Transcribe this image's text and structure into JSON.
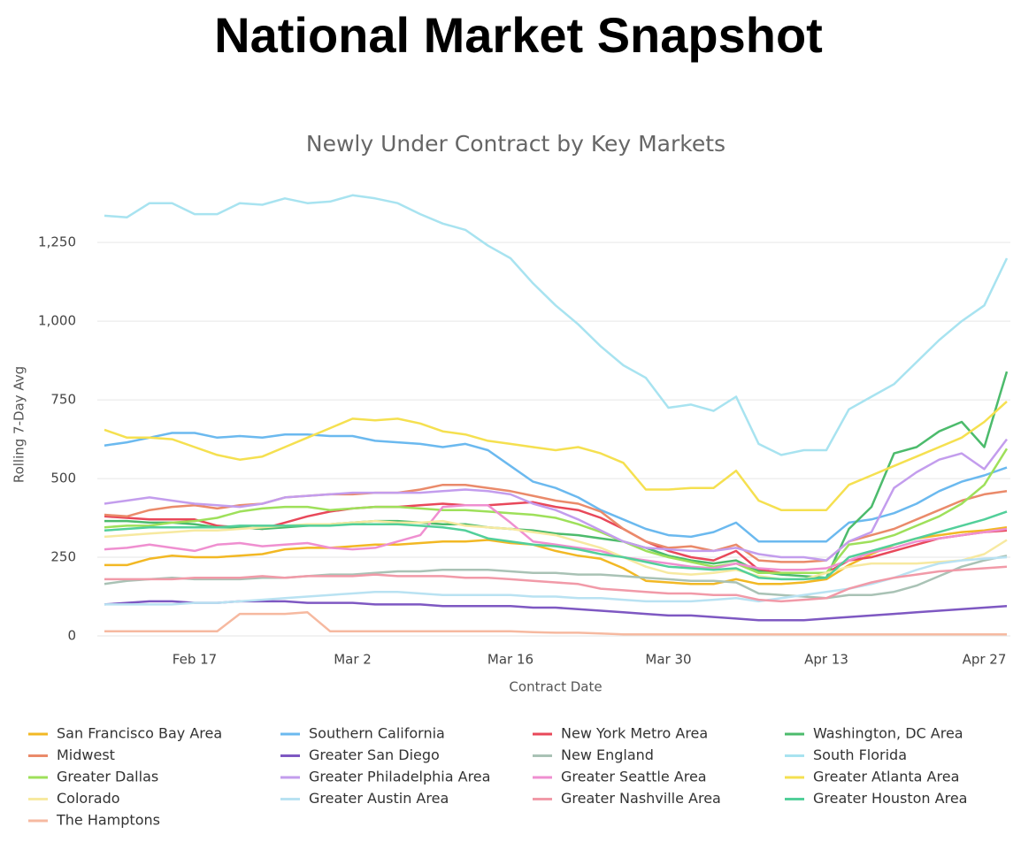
{
  "chart_data": {
    "type": "line",
    "page_title": "National Market Snapshot",
    "title": "Newly Under Contract by Key Markets",
    "x_label": "Contract Date",
    "y_label": "Rolling 7-Day Avg",
    "x": [
      "Feb 9",
      "Feb 11",
      "Feb 13",
      "Feb 15",
      "Feb 17",
      "Feb 19",
      "Feb 21",
      "Feb 23",
      "Feb 25",
      "Feb 27",
      "Feb 29",
      "Mar 2",
      "Mar 4",
      "Mar 6",
      "Mar 8",
      "Mar 10",
      "Mar 12",
      "Mar 14",
      "Mar 16",
      "Mar 18",
      "Mar 20",
      "Mar 22",
      "Mar 24",
      "Mar 26",
      "Mar 28",
      "Mar 30",
      "Apr 1",
      "Apr 3",
      "Apr 5",
      "Apr 7",
      "Apr 9",
      "Apr 11",
      "Apr 13",
      "Apr 15",
      "Apr 17",
      "Apr 19",
      "Apr 21",
      "Apr 23",
      "Apr 25",
      "Apr 27",
      "Apr 29"
    ],
    "xticks": [
      "Feb 17",
      "Mar 2",
      "Mar 16",
      "Mar 30",
      "Apr 13",
      "Apr 27"
    ],
    "ylim": [
      0,
      1450
    ],
    "yticks": [
      0,
      250,
      500,
      750,
      {
        "value": 1000,
        "label": "1,000"
      },
      {
        "value": 1250,
        "label": "1,250"
      }
    ],
    "grid": true,
    "series": [
      {
        "name": "San Francisco Bay Area",
        "color": "#f2b824",
        "values": [
          225,
          225,
          245,
          255,
          250,
          250,
          255,
          260,
          275,
          280,
          280,
          285,
          290,
          290,
          295,
          300,
          300,
          305,
          295,
          290,
          270,
          255,
          245,
          215,
          175,
          170,
          165,
          165,
          180,
          165,
          165,
          170,
          180,
          225,
          260,
          290,
          310,
          320,
          330,
          335,
          345
        ]
      },
      {
        "name": "Southern California",
        "color": "#6bb9ef",
        "values": [
          605,
          615,
          630,
          645,
          645,
          630,
          635,
          630,
          640,
          640,
          635,
          635,
          620,
          615,
          610,
          600,
          610,
          590,
          540,
          490,
          470,
          440,
          400,
          370,
          340,
          320,
          315,
          330,
          360,
          300,
          300,
          300,
          300,
          360,
          370,
          390,
          420,
          460,
          490,
          510,
          535
        ]
      },
      {
        "name": "New York Metro Area",
        "color": "#e8485a",
        "values": [
          380,
          375,
          370,
          370,
          370,
          350,
          345,
          340,
          360,
          380,
          395,
          405,
          410,
          410,
          415,
          420,
          415,
          415,
          420,
          425,
          410,
          400,
          375,
          340,
          300,
          270,
          250,
          240,
          270,
          210,
          200,
          200,
          200,
          240,
          250,
          270,
          290,
          310,
          320,
          330,
          335
        ]
      },
      {
        "name": "Washington, DC Area",
        "color": "#4cbb6c",
        "values": [
          365,
          365,
          360,
          360,
          355,
          345,
          345,
          340,
          345,
          350,
          355,
          360,
          365,
          365,
          360,
          355,
          355,
          345,
          340,
          335,
          325,
          320,
          310,
          300,
          280,
          255,
          240,
          230,
          240,
          205,
          195,
          190,
          185,
          340,
          410,
          580,
          600,
          650,
          680,
          600,
          840
        ]
      },
      {
        "name": "Midwest",
        "color": "#ea8a6a",
        "values": [
          385,
          380,
          400,
          410,
          415,
          405,
          415,
          420,
          440,
          445,
          450,
          450,
          455,
          455,
          465,
          480,
          480,
          470,
          460,
          445,
          430,
          420,
          395,
          340,
          300,
          280,
          285,
          270,
          290,
          240,
          235,
          235,
          240,
          300,
          320,
          340,
          370,
          400,
          430,
          450,
          460
        ]
      },
      {
        "name": "Greater San Diego",
        "color": "#7e58c2",
        "values": [
          100,
          105,
          110,
          110,
          105,
          105,
          110,
          110,
          110,
          105,
          105,
          105,
          100,
          100,
          100,
          95,
          95,
          95,
          95,
          90,
          90,
          85,
          80,
          75,
          70,
          65,
          65,
          60,
          55,
          50,
          50,
          50,
          55,
          60,
          65,
          70,
          75,
          80,
          85,
          90,
          95
        ]
      },
      {
        "name": "New England",
        "color": "#a9c2b5",
        "values": [
          165,
          175,
          180,
          185,
          180,
          180,
          180,
          185,
          185,
          190,
          195,
          195,
          200,
          205,
          205,
          210,
          210,
          210,
          205,
          200,
          200,
          195,
          195,
          190,
          185,
          180,
          175,
          175,
          170,
          135,
          130,
          125,
          120,
          130,
          130,
          140,
          160,
          190,
          220,
          240,
          255
        ]
      },
      {
        "name": "South Florida",
        "color": "#a8e3f0",
        "values": [
          1335,
          1330,
          1375,
          1375,
          1340,
          1340,
          1375,
          1370,
          1390,
          1375,
          1380,
          1400,
          1390,
          1375,
          1340,
          1310,
          1290,
          1240,
          1200,
          1120,
          1050,
          990,
          920,
          860,
          820,
          725,
          735,
          715,
          760,
          610,
          575,
          590,
          590,
          720,
          760,
          800,
          870,
          940,
          1000,
          1050,
          1200
        ]
      },
      {
        "name": "Greater Dallas",
        "color": "#9ee05a",
        "values": [
          345,
          350,
          350,
          360,
          365,
          375,
          395,
          405,
          410,
          410,
          400,
          405,
          410,
          410,
          405,
          400,
          400,
          395,
          390,
          385,
          375,
          355,
          330,
          300,
          270,
          250,
          235,
          220,
          230,
          200,
          200,
          200,
          200,
          290,
          300,
          320,
          350,
          380,
          420,
          480,
          595
        ]
      },
      {
        "name": "Greater Philadelphia Area",
        "color": "#c39ded",
        "values": [
          420,
          430,
          440,
          430,
          420,
          415,
          410,
          420,
          440,
          445,
          450,
          455,
          455,
          455,
          455,
          460,
          465,
          460,
          450,
          420,
          400,
          370,
          335,
          300,
          280,
          275,
          270,
          270,
          280,
          260,
          250,
          250,
          240,
          300,
          330,
          470,
          520,
          560,
          580,
          530,
          625
        ]
      },
      {
        "name": "Greater Seattle Area",
        "color": "#ef8fd0",
        "values": [
          275,
          280,
          290,
          280,
          270,
          290,
          295,
          285,
          290,
          295,
          280,
          275,
          280,
          300,
          320,
          410,
          415,
          415,
          360,
          300,
          290,
          280,
          270,
          250,
          240,
          230,
          220,
          215,
          230,
          215,
          210,
          210,
          215,
          240,
          265,
          280,
          300,
          310,
          320,
          330,
          340
        ]
      },
      {
        "name": "Greater Atlanta Area",
        "color": "#f5e050",
        "values": [
          655,
          630,
          630,
          625,
          600,
          575,
          560,
          570,
          600,
          630,
          660,
          690,
          685,
          690,
          675,
          650,
          640,
          620,
          610,
          600,
          590,
          600,
          580,
          550,
          465,
          465,
          470,
          470,
          525,
          430,
          400,
          400,
          400,
          480,
          510,
          540,
          570,
          600,
          630,
          680,
          745
        ]
      },
      {
        "name": "Colorado",
        "color": "#f7e9a0",
        "values": [
          315,
          320,
          325,
          330,
          335,
          335,
          340,
          345,
          350,
          355,
          355,
          360,
          365,
          360,
          360,
          365,
          350,
          345,
          340,
          330,
          320,
          300,
          280,
          250,
          220,
          200,
          195,
          200,
          210,
          190,
          180,
          180,
          200,
          220,
          230,
          230,
          230,
          235,
          240,
          260,
          305
        ]
      },
      {
        "name": "Greater Austin Area",
        "color": "#b9e2f2",
        "values": [
          100,
          100,
          100,
          100,
          105,
          105,
          110,
          115,
          120,
          125,
          130,
          135,
          140,
          140,
          135,
          130,
          130,
          130,
          130,
          125,
          125,
          120,
          120,
          115,
          110,
          110,
          110,
          115,
          120,
          110,
          120,
          130,
          140,
          150,
          165,
          185,
          210,
          230,
          240,
          245,
          250
        ]
      },
      {
        "name": "Greater Nashville Area",
        "color": "#f19aa8",
        "values": [
          180,
          180,
          180,
          180,
          185,
          185,
          185,
          190,
          185,
          190,
          190,
          190,
          195,
          190,
          190,
          190,
          185,
          185,
          180,
          175,
          170,
          165,
          150,
          145,
          140,
          135,
          135,
          130,
          130,
          115,
          110,
          115,
          120,
          150,
          170,
          185,
          195,
          205,
          210,
          215,
          220
        ]
      },
      {
        "name": "Greater Houston Area",
        "color": "#52cf9a",
        "values": [
          335,
          340,
          345,
          345,
          345,
          345,
          350,
          350,
          350,
          350,
          350,
          355,
          355,
          355,
          350,
          345,
          335,
          310,
          300,
          290,
          285,
          275,
          260,
          250,
          235,
          220,
          215,
          210,
          215,
          185,
          180,
          180,
          185,
          250,
          270,
          290,
          310,
          330,
          350,
          370,
          395
        ]
      },
      {
        "name": "The Hamptons",
        "color": "#f6b9a0",
        "values": [
          15,
          15,
          15,
          15,
          15,
          15,
          70,
          70,
          70,
          75,
          15,
          15,
          15,
          15,
          15,
          15,
          15,
          15,
          15,
          12,
          10,
          10,
          8,
          5,
          5,
          5,
          5,
          5,
          5,
          5,
          5,
          5,
          5,
          5,
          5,
          5,
          5,
          5,
          5,
          5,
          5
        ]
      }
    ]
  }
}
